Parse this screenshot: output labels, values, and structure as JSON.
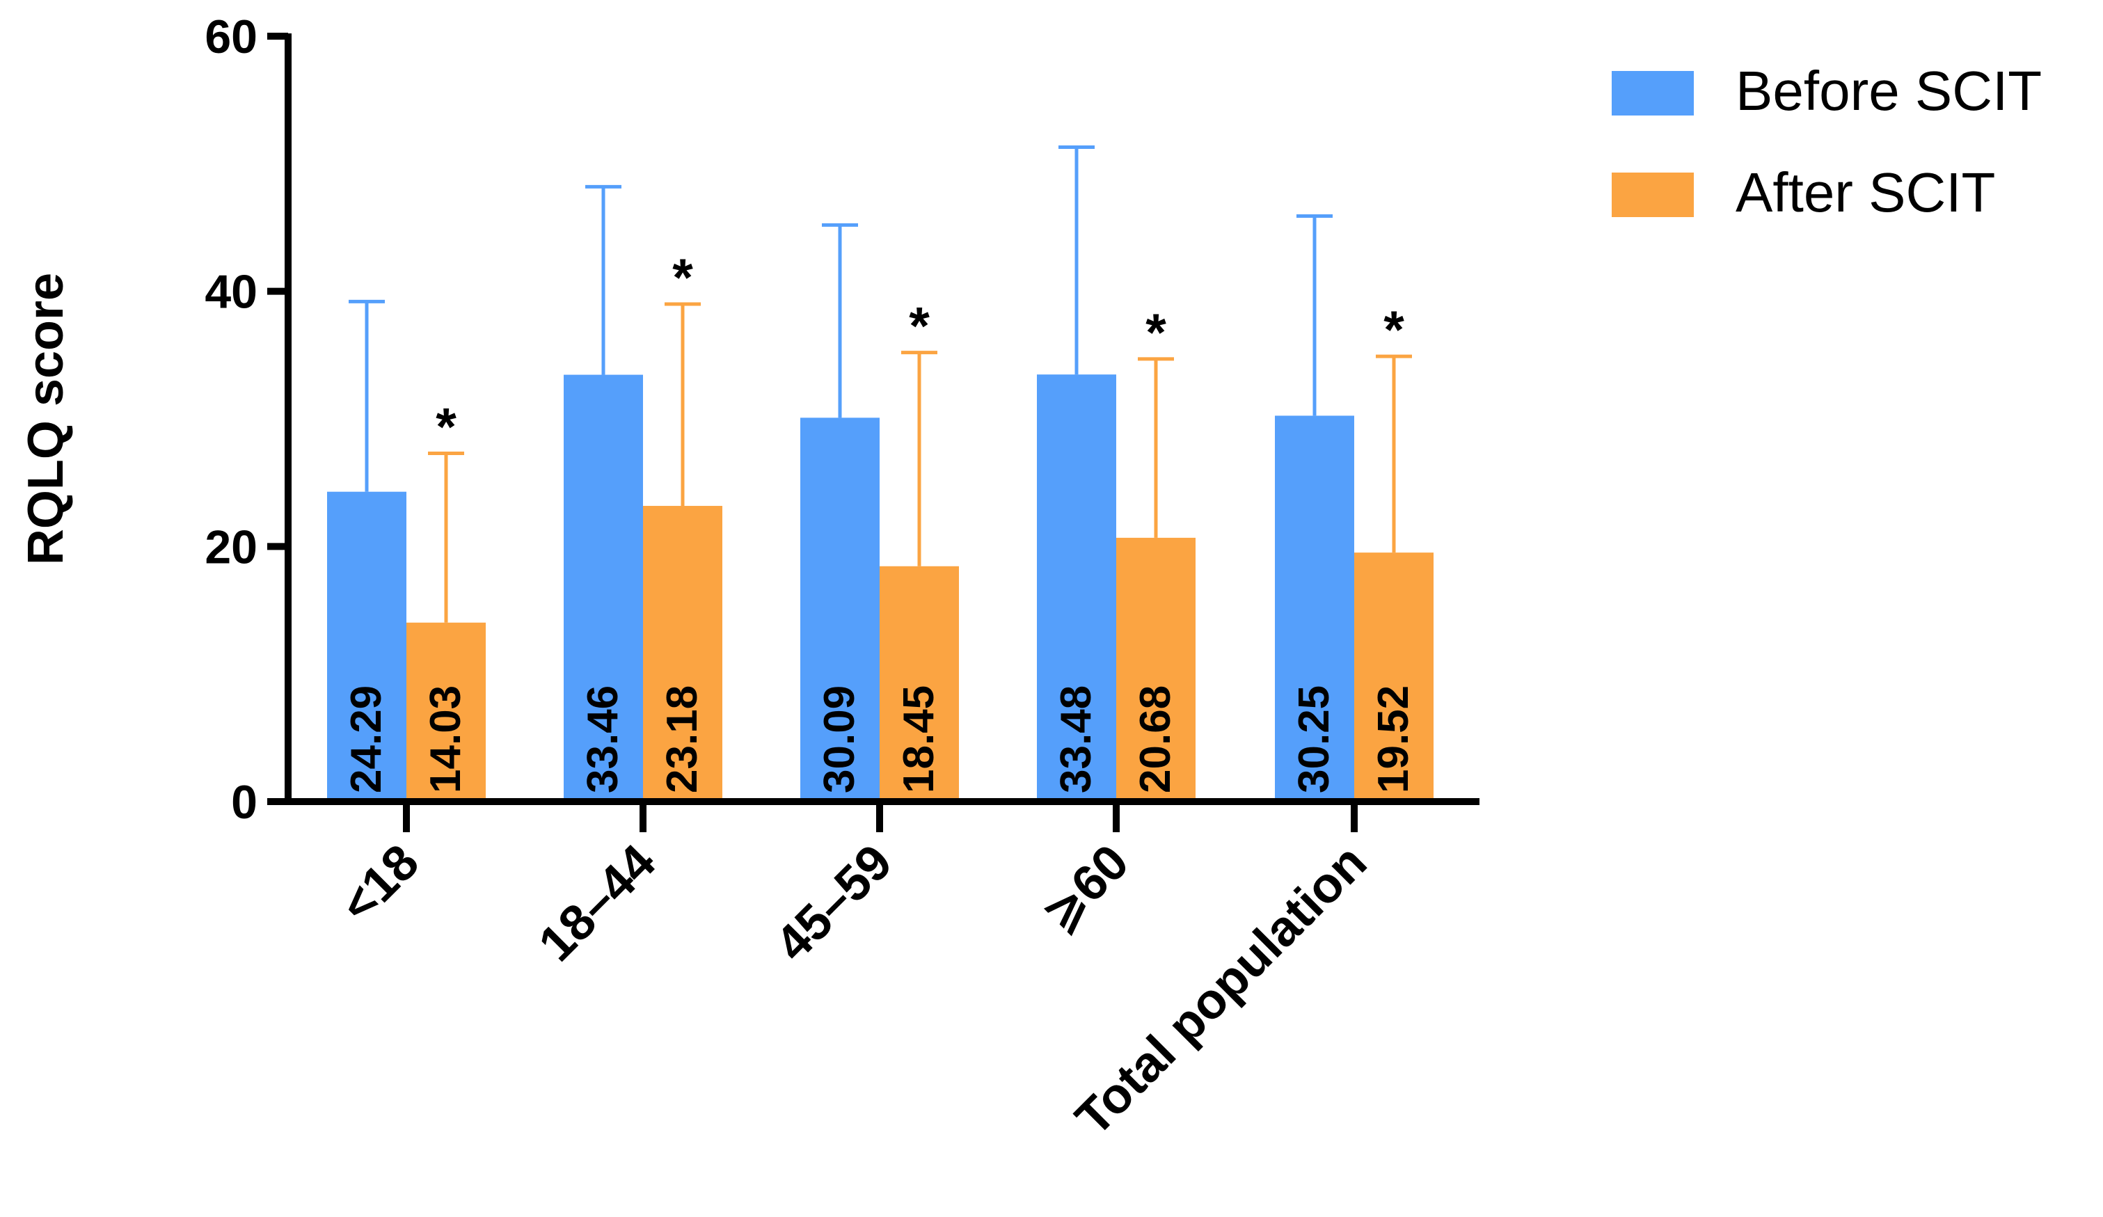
{
  "colors": {
    "before": "#559ffb",
    "after": "#fba442",
    "axis": "#000000"
  },
  "chart_data": {
    "type": "bar",
    "title": "",
    "xlabel": "",
    "ylabel": "RQLQ score",
    "ylim": [
      0,
      60
    ],
    "yticks": [
      "0",
      "20",
      "40",
      "60"
    ],
    "yticks_values": [
      0,
      20,
      40,
      60
    ],
    "categories": [
      "<18",
      "18–44",
      "45–59",
      "⩾60",
      "Total population"
    ],
    "series": [
      {
        "name": "Before SCIT",
        "values": [
          24.29,
          33.46,
          30.09,
          33.48,
          30.25
        ],
        "error_upper": [
          39.2,
          48.2,
          45.2,
          51.3,
          45.9
        ],
        "value_labels": [
          "24.29",
          "33.46",
          "30.09",
          "33.48",
          "30.25"
        ]
      },
      {
        "name": "After SCIT",
        "values": [
          14.03,
          23.18,
          18.45,
          20.68,
          19.52
        ],
        "error_upper": [
          27.3,
          39.0,
          35.2,
          34.7,
          34.9
        ],
        "value_labels": [
          "14.03",
          "23.18",
          "18.45",
          "20.68",
          "19.52"
        ]
      }
    ],
    "significance_marker": "*",
    "significance_on_series": "After SCIT",
    "legend_position": "top-right"
  }
}
